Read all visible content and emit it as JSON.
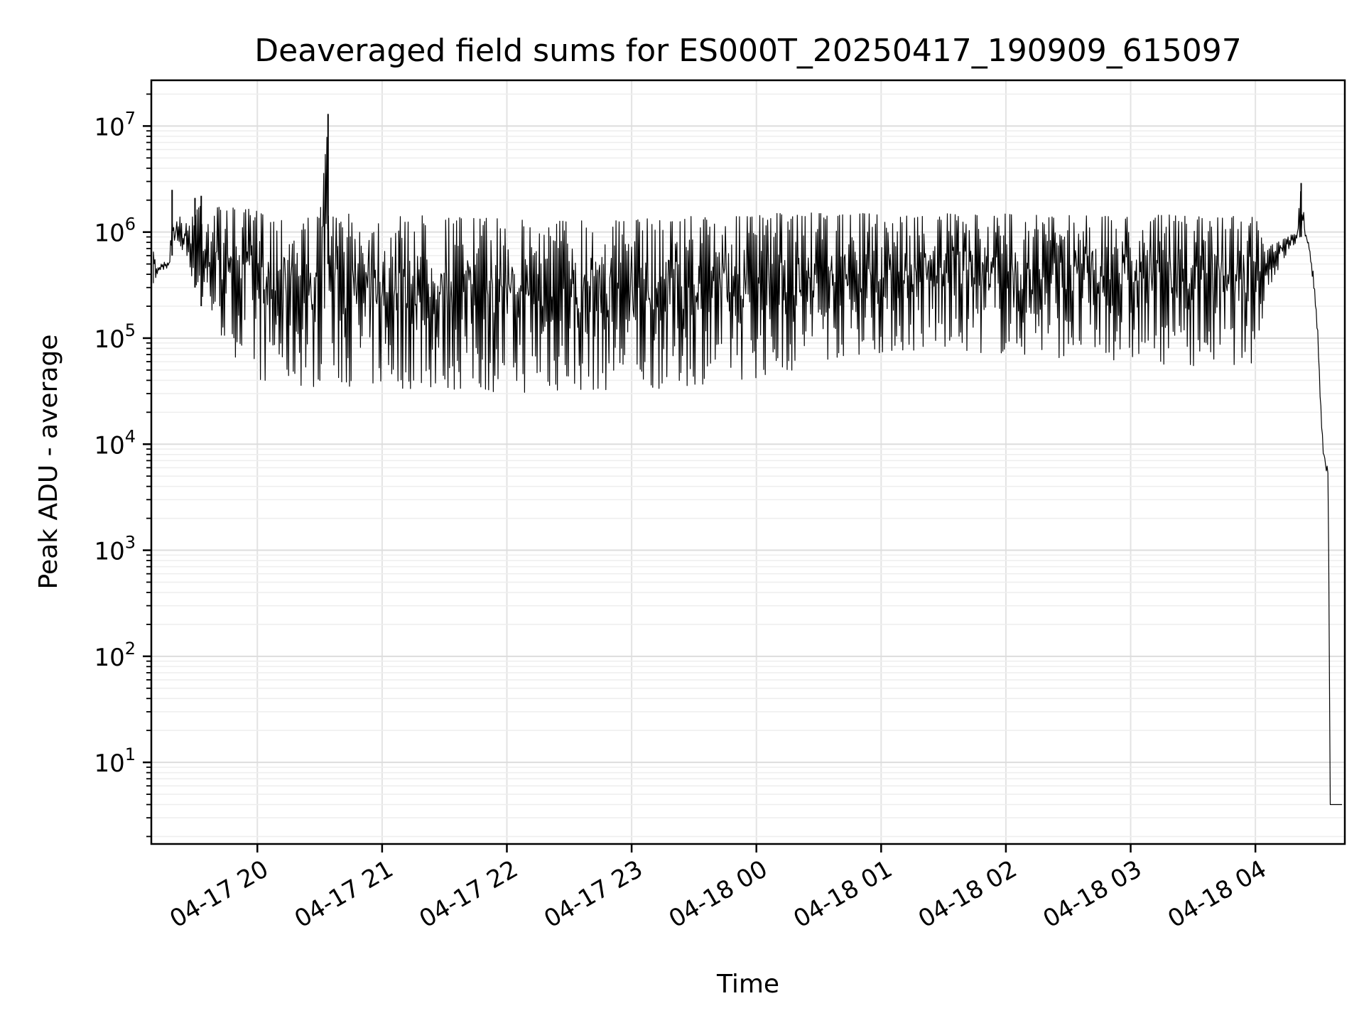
{
  "chart_data": {
    "type": "line",
    "title": "Deaveraged field sums for ES000T_20250417_190909_615097",
    "xlabel": "Time",
    "ylabel": "Peak ADU - average",
    "yscale": "log",
    "ylim": [
      1.7,
      27000000
    ],
    "xlim": [
      "2025-04-17 19:09",
      "2025-04-18 04:43"
    ],
    "xticks": [
      {
        "value": "2025-04-17 20:00",
        "label": "04-17 20"
      },
      {
        "value": "2025-04-17 21:00",
        "label": "04-17 21"
      },
      {
        "value": "2025-04-17 22:00",
        "label": "04-17 22"
      },
      {
        "value": "2025-04-17 23:00",
        "label": "04-17 23"
      },
      {
        "value": "2025-04-18 00:00",
        "label": "04-18 00"
      },
      {
        "value": "2025-04-18 01:00",
        "label": "04-18 01"
      },
      {
        "value": "2025-04-18 02:00",
        "label": "04-18 02"
      },
      {
        "value": "2025-04-18 03:00",
        "label": "04-18 03"
      },
      {
        "value": "2025-04-18 04:00",
        "label": "04-18 04"
      }
    ],
    "yticks": [
      {
        "value": 10,
        "base": "10",
        "exp": "1"
      },
      {
        "value": 100,
        "base": "10",
        "exp": "2"
      },
      {
        "value": 1000,
        "base": "10",
        "exp": "3"
      },
      {
        "value": 10000,
        "base": "10",
        "exp": "4"
      },
      {
        "value": 100000,
        "base": "10",
        "exp": "5"
      },
      {
        "value": 1000000,
        "base": "10",
        "exp": "6"
      },
      {
        "value": 10000000,
        "base": "10",
        "exp": "7"
      }
    ],
    "grid": true,
    "line_color": "#000000",
    "series": [
      {
        "x": [
          "2025-04-17 19:10",
          "2025-04-17 19:12",
          "2025-04-17 19:14",
          "2025-04-17 19:16",
          "2025-04-17 19:18",
          "2025-04-17 19:19",
          "2025-04-17 19:20",
          "2025-04-17 19:22",
          "2025-04-17 19:24",
          "2025-04-17 19:26",
          "2025-04-17 19:28",
          "2025-04-17 19:30",
          "2025-04-17 19:33",
          "2025-04-17 19:36",
          "2025-04-17 19:40",
          "2025-04-17 19:44",
          "2025-04-17 19:48",
          "2025-04-17 19:52",
          "2025-04-17 19:56",
          "2025-04-17 20:00",
          "2025-04-17 20:05",
          "2025-04-17 20:10",
          "2025-04-17 20:15",
          "2025-04-17 20:20",
          "2025-04-17 20:25",
          "2025-04-17 20:30",
          "2025-04-17 20:34",
          "2025-04-17 20:35",
          "2025-04-17 20:36",
          "2025-04-17 20:38",
          "2025-04-17 20:40",
          "2025-04-17 20:45",
          "2025-04-17 20:50",
          "2025-04-17 20:55",
          "2025-04-17 21:00",
          "2025-04-17 21:10",
          "2025-04-17 21:20",
          "2025-04-17 21:30",
          "2025-04-17 21:40",
          "2025-04-17 21:50",
          "2025-04-17 22:00",
          "2025-04-17 22:10",
          "2025-04-17 22:20",
          "2025-04-17 22:30",
          "2025-04-17 22:40",
          "2025-04-17 22:50",
          "2025-04-17 23:00",
          "2025-04-17 23:10",
          "2025-04-17 23:20",
          "2025-04-17 23:30",
          "2025-04-17 23:40",
          "2025-04-17 23:50",
          "2025-04-18 00:00",
          "2025-04-18 00:10",
          "2025-04-18 00:20",
          "2025-04-18 00:30",
          "2025-04-18 00:40",
          "2025-04-18 00:50",
          "2025-04-18 01:00",
          "2025-04-18 01:10",
          "2025-04-18 01:20",
          "2025-04-18 01:30",
          "2025-04-18 01:40",
          "2025-04-18 01:50",
          "2025-04-18 02:00",
          "2025-04-18 02:10",
          "2025-04-18 02:20",
          "2025-04-18 02:30",
          "2025-04-18 02:40",
          "2025-04-18 02:50",
          "2025-04-18 03:00",
          "2025-04-18 03:10",
          "2025-04-18 03:20",
          "2025-04-18 03:30",
          "2025-04-18 03:40",
          "2025-04-18 03:50",
          "2025-04-18 04:00",
          "2025-04-18 04:05",
          "2025-04-18 04:10",
          "2025-04-18 04:15",
          "2025-04-18 04:20",
          "2025-04-18 04:22",
          "2025-04-18 04:24",
          "2025-04-18 04:25",
          "2025-04-18 04:26",
          "2025-04-18 04:28",
          "2025-04-18 04:30",
          "2025-04-18 04:32",
          "2025-04-18 04:33",
          "2025-04-18 04:34",
          "2025-04-18 04:35",
          "2025-04-18 04:36",
          "2025-04-18 04:37",
          "2025-04-18 04:38",
          "2025-04-18 04:39",
          "2025-04-18 04:40",
          "2025-04-18 04:42"
        ],
        "upper": [
          650000,
          460000,
          550000,
          520000,
          560000,
          2500000,
          1100000,
          1500000,
          1300000,
          1200000,
          1400000,
          2100000,
          2200000,
          1900000,
          1800000,
          1700000,
          1700000,
          1600000,
          1650000,
          1600000,
          1550000,
          1500000,
          1500000,
          1400000,
          1400000,
          1400000,
          13000000,
          1500000,
          1400000,
          1500000,
          1400000,
          1500000,
          1450000,
          1450000,
          1400000,
          1400000,
          1450000,
          1400000,
          1400000,
          1350000,
          1350000,
          1300000,
          1300000,
          1350000,
          1350000,
          1300000,
          1300000,
          1350000,
          1400000,
          1450000,
          1350000,
          1400000,
          1450000,
          1500000,
          1550000,
          1500000,
          1450000,
          1500000,
          1500000,
          1450000,
          1450000,
          1500000,
          1450000,
          1450000,
          1500000,
          1450000,
          1450000,
          1500000,
          1450000,
          1400000,
          1450000,
          1450000,
          1450000,
          1400000,
          1400000,
          1450000,
          1400000,
          700000,
          800000,
          900000,
          1000000,
          2900000,
          1050000,
          950000,
          800000,
          400000,
          120000,
          14000,
          9000,
          6500,
          6000,
          4.0,
          4.0,
          4.0,
          4.0,
          4.0,
          4.0
        ],
        "lower": [
          330000,
          380000,
          420000,
          450000,
          480000,
          600000,
          700000,
          750000,
          600000,
          550000,
          400000,
          300000,
          200000,
          150000,
          120000,
          90000,
          70000,
          60000,
          50000,
          40000,
          38000,
          36000,
          36000,
          35000,
          35000,
          33000,
          500000,
          40000,
          38000,
          36000,
          35000,
          35000,
          34000,
          34000,
          34000,
          33000,
          33000,
          32000,
          32000,
          31000,
          31000,
          30000,
          30000,
          31000,
          32000,
          32000,
          33000,
          33000,
          34000,
          36000,
          38000,
          40000,
          42000,
          45000,
          50000,
          60000,
          65000,
          70000,
          72000,
          74000,
          75000,
          75000,
          74000,
          72000,
          70000,
          68000,
          66000,
          65000,
          63000,
          62000,
          60000,
          58000,
          56000,
          55000,
          55000,
          56000,
          58000,
          250000,
          400000,
          600000,
          800000,
          900000,
          800000,
          700000,
          600000,
          300000,
          100000,
          10000,
          7000,
          5500,
          5000,
          4.0,
          4.0,
          4.0,
          4.0,
          4.0,
          4.0
        ]
      }
    ]
  }
}
